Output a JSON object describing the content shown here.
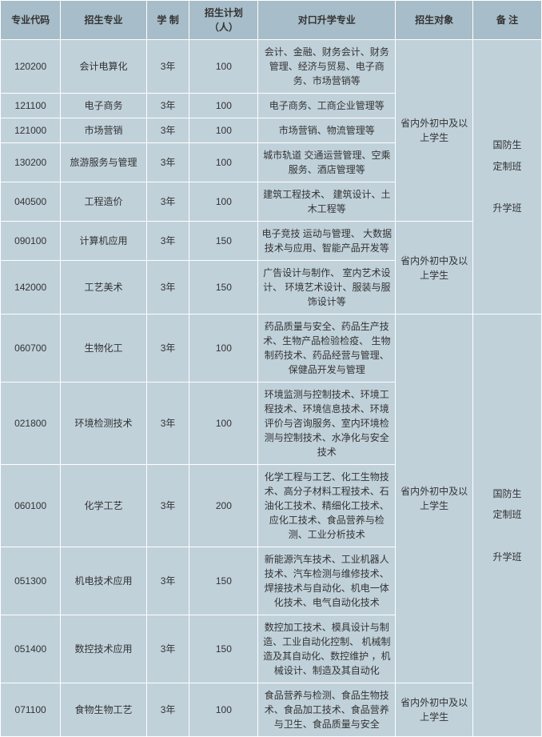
{
  "headers": {
    "code": "专业代码",
    "major": "招生专业",
    "duration": "学  制",
    "plan": "招生计划（人）",
    "pathway": "对口升学专业",
    "target": "招生对象",
    "remark": "备  注"
  },
  "target_text_1": "省内外初中及以上学生",
  "target_text_2": "省内外初中及以上学生",
  "target_text_3": "省内外初中及以上学生",
  "target_text_4": "省内外初中及以上学生",
  "remark_text_1": "国防生定制班\n\n升学班",
  "remark_text_2": "国防生定制班\n\n升学班",
  "rows": [
    {
      "code": "120200",
      "major": "会计电算化",
      "duration": "3年",
      "plan": "100",
      "pathway": "会计、金融、财务会计、财务管理、经济与贸易、电子商务、市场营销等"
    },
    {
      "code": "121100",
      "major": "电子商务",
      "duration": "3年",
      "plan": "100",
      "pathway": "电子商务、工商企业管理等"
    },
    {
      "code": "121000",
      "major": "市场营销",
      "duration": "3年",
      "plan": "100",
      "pathway": "市场营销、物流管理等"
    },
    {
      "code": "130200",
      "major": "旅游服务与管理",
      "duration": "3年",
      "plan": "100",
      "pathway": "城市轨道 交通运营管理、空乘服务、酒店管理等"
    },
    {
      "code": "040500",
      "major": "工程造价",
      "duration": "3年",
      "plan": "100",
      "pathway": "建筑工程技术、 建筑设计、土木工程等"
    },
    {
      "code": "090100",
      "major": "计算机应用",
      "duration": "3年",
      "plan": "150",
      "pathway": "电子竞技 运动与管理、 大数据技术与应用、智能产品开发等"
    },
    {
      "code": "142000",
      "major": "工艺美术",
      "duration": "3年",
      "plan": "150",
      "pathway": "广告设计与制作、 室内艺术设计、 环境艺术设计、服装与服饰设计等"
    },
    {
      "code": "060700",
      "major": "生物化工",
      "duration": "3年",
      "plan": "100",
      "pathway": "药品质量与安全、药品生产技术、生物产品检验检疫、 生物制药技术、药品经营与管理、保健品开发与管理"
    },
    {
      "code": "021800",
      "major": "环境检测技术",
      "duration": "3年",
      "plan": "100",
      "pathway": "环境监测与控制技术、环境工程技术、环境信息技术、环境评价与咨询服务、室内环境检测与控制技术、水净化与安全技术"
    },
    {
      "code": "060100",
      "major": "化学工艺",
      "duration": "3年",
      "plan": "200",
      "pathway": "化学工程与工艺、化工生物技术、高分子材料工程技术、石油化工技术、精细化工技术、应化工技术、食品营养与检测、工业分析技术"
    },
    {
      "code": "051300",
      "major": "机电技术应用",
      "duration": "3年",
      "plan": "150",
      "pathway": "新能源汽车技术、工业机器人技术、汽车检测与维修技术、焊接技术与自动化、机电一体化技术、电气自动化技术"
    },
    {
      "code": "051400",
      "major": "数控技术应用",
      "duration": "3年",
      "plan": "150",
      "pathway": "数控加工技术、模具设计与制造、工业自动化控制、 机械制造及其自动化、数控维护 ，机械设计、制造及其自动化"
    },
    {
      "code": "071100",
      "major": "食物生物工艺",
      "duration": "3年",
      "plan": "100",
      "pathway": "食品营养与检测、食品生物技术、食品加工技术、食品营养与卫生、食品质量与安全"
    }
  ],
  "colors": {
    "header_bg": "#a7bdc9",
    "cell_bg": "#c0d1da",
    "border": "#ffffff",
    "text": "#333333"
  },
  "font_size": 12
}
